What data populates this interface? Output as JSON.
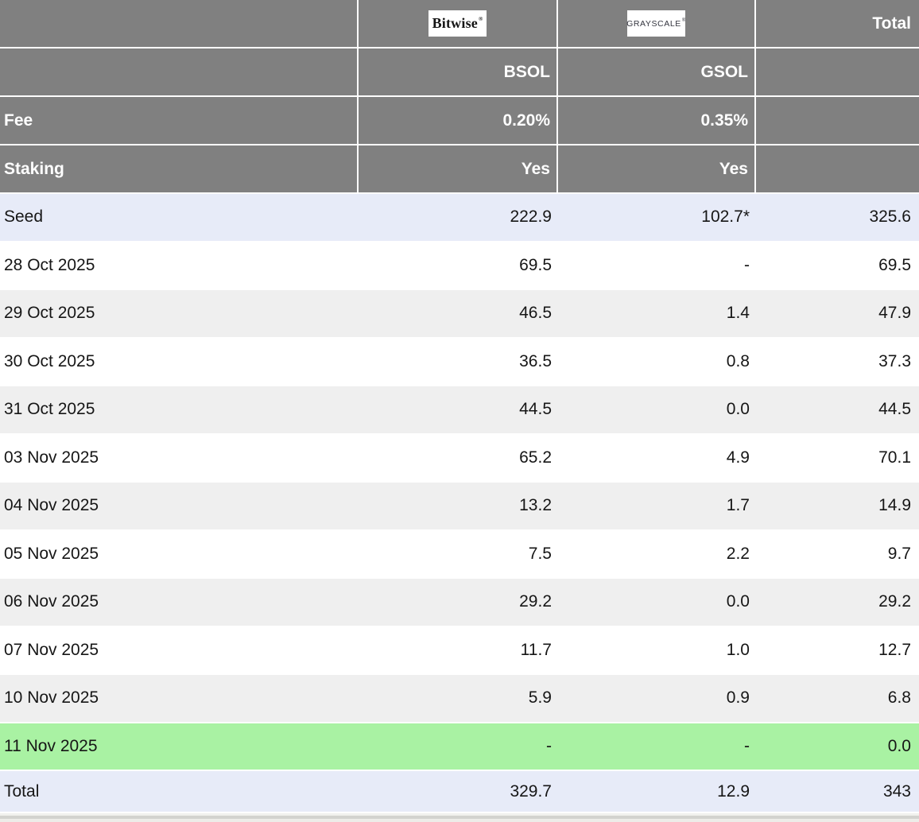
{
  "colors": {
    "header_bg": "#808080",
    "header_text": "#ffffff",
    "body_text": "#161616",
    "row_white": "#ffffff",
    "row_gray": "#efefef",
    "row_blue": "#e7ebf8",
    "row_green": "#a9f2a3"
  },
  "header": {
    "bitwise_logo": {
      "text": "Bitwise",
      "reg": "®"
    },
    "grayscale_logo": {
      "text": "GRAYSCALE",
      "reg": "®"
    },
    "total_label": "Total",
    "tickers": {
      "bsol": "BSOL",
      "gsol": "GSOL"
    },
    "fee": {
      "label": "Fee",
      "bsol": "0.20%",
      "gsol": "0.35%"
    },
    "staking": {
      "label": "Staking",
      "bsol": "Yes",
      "gsol": "Yes"
    }
  },
  "rows": [
    {
      "label": "Seed",
      "bsol": "222.9",
      "gsol": "102.7*",
      "total": "325.6",
      "highlight": "blue"
    },
    {
      "label": "28 Oct 2025",
      "bsol": "69.5",
      "gsol": "-",
      "total": "69.5",
      "highlight": "white"
    },
    {
      "label": "29 Oct 2025",
      "bsol": "46.5",
      "gsol": "1.4",
      "total": "47.9",
      "highlight": "gray"
    },
    {
      "label": "30 Oct 2025",
      "bsol": "36.5",
      "gsol": "0.8",
      "total": "37.3",
      "highlight": "white"
    },
    {
      "label": "31 Oct 2025",
      "bsol": "44.5",
      "gsol": "0.0",
      "total": "44.5",
      "highlight": "gray"
    },
    {
      "label": "03 Nov 2025",
      "bsol": "65.2",
      "gsol": "4.9",
      "total": "70.1",
      "highlight": "white"
    },
    {
      "label": "04 Nov 2025",
      "bsol": "13.2",
      "gsol": "1.7",
      "total": "14.9",
      "highlight": "gray"
    },
    {
      "label": "05 Nov 2025",
      "bsol": "7.5",
      "gsol": "2.2",
      "total": "9.7",
      "highlight": "white"
    },
    {
      "label": "06 Nov 2025",
      "bsol": "29.2",
      "gsol": "0.0",
      "total": "29.2",
      "highlight": "gray"
    },
    {
      "label": "07 Nov 2025",
      "bsol": "11.7",
      "gsol": "1.0",
      "total": "12.7",
      "highlight": "white"
    },
    {
      "label": "10 Nov 2025",
      "bsol": "5.9",
      "gsol": "0.9",
      "total": "6.8",
      "highlight": "gray"
    },
    {
      "label": "11 Nov 2025",
      "bsol": "-",
      "gsol": "-",
      "total": "0.0",
      "highlight": "green"
    },
    {
      "label": "Total",
      "bsol": "329.7",
      "gsol": "12.9",
      "total": "343",
      "highlight": "blue",
      "is_total": true
    }
  ],
  "chart_data": {
    "type": "table",
    "columns": [
      "",
      "BSOL",
      "GSOL",
      "Total"
    ],
    "providers": {
      "BSOL": "Bitwise",
      "GSOL": "Grayscale"
    },
    "fee": {
      "BSOL": "0.20%",
      "GSOL": "0.35%"
    },
    "staking": {
      "BSOL": "Yes",
      "GSOL": "Yes"
    },
    "rows": [
      {
        "label": "Seed",
        "BSOL": 222.9,
        "GSOL": 102.7,
        "GSOL_note": "*",
        "Total": 325.6
      },
      {
        "label": "28 Oct 2025",
        "BSOL": 69.5,
        "GSOL": null,
        "Total": 69.5
      },
      {
        "label": "29 Oct 2025",
        "BSOL": 46.5,
        "GSOL": 1.4,
        "Total": 47.9
      },
      {
        "label": "30 Oct 2025",
        "BSOL": 36.5,
        "GSOL": 0.8,
        "Total": 37.3
      },
      {
        "label": "31 Oct 2025",
        "BSOL": 44.5,
        "GSOL": 0.0,
        "Total": 44.5
      },
      {
        "label": "03 Nov 2025",
        "BSOL": 65.2,
        "GSOL": 4.9,
        "Total": 70.1
      },
      {
        "label": "04 Nov 2025",
        "BSOL": 13.2,
        "GSOL": 1.7,
        "Total": 14.9
      },
      {
        "label": "05 Nov 2025",
        "BSOL": 7.5,
        "GSOL": 2.2,
        "Total": 9.7
      },
      {
        "label": "06 Nov 2025",
        "BSOL": 29.2,
        "GSOL": 0.0,
        "Total": 29.2
      },
      {
        "label": "07 Nov 2025",
        "BSOL": 11.7,
        "GSOL": 1.0,
        "Total": 12.7
      },
      {
        "label": "10 Nov 2025",
        "BSOL": 5.9,
        "GSOL": 0.9,
        "Total": 6.8
      },
      {
        "label": "11 Nov 2025",
        "BSOL": null,
        "GSOL": null,
        "Total": 0.0
      },
      {
        "label": "Total",
        "BSOL": 329.7,
        "GSOL": 12.9,
        "Total": 343
      }
    ]
  }
}
